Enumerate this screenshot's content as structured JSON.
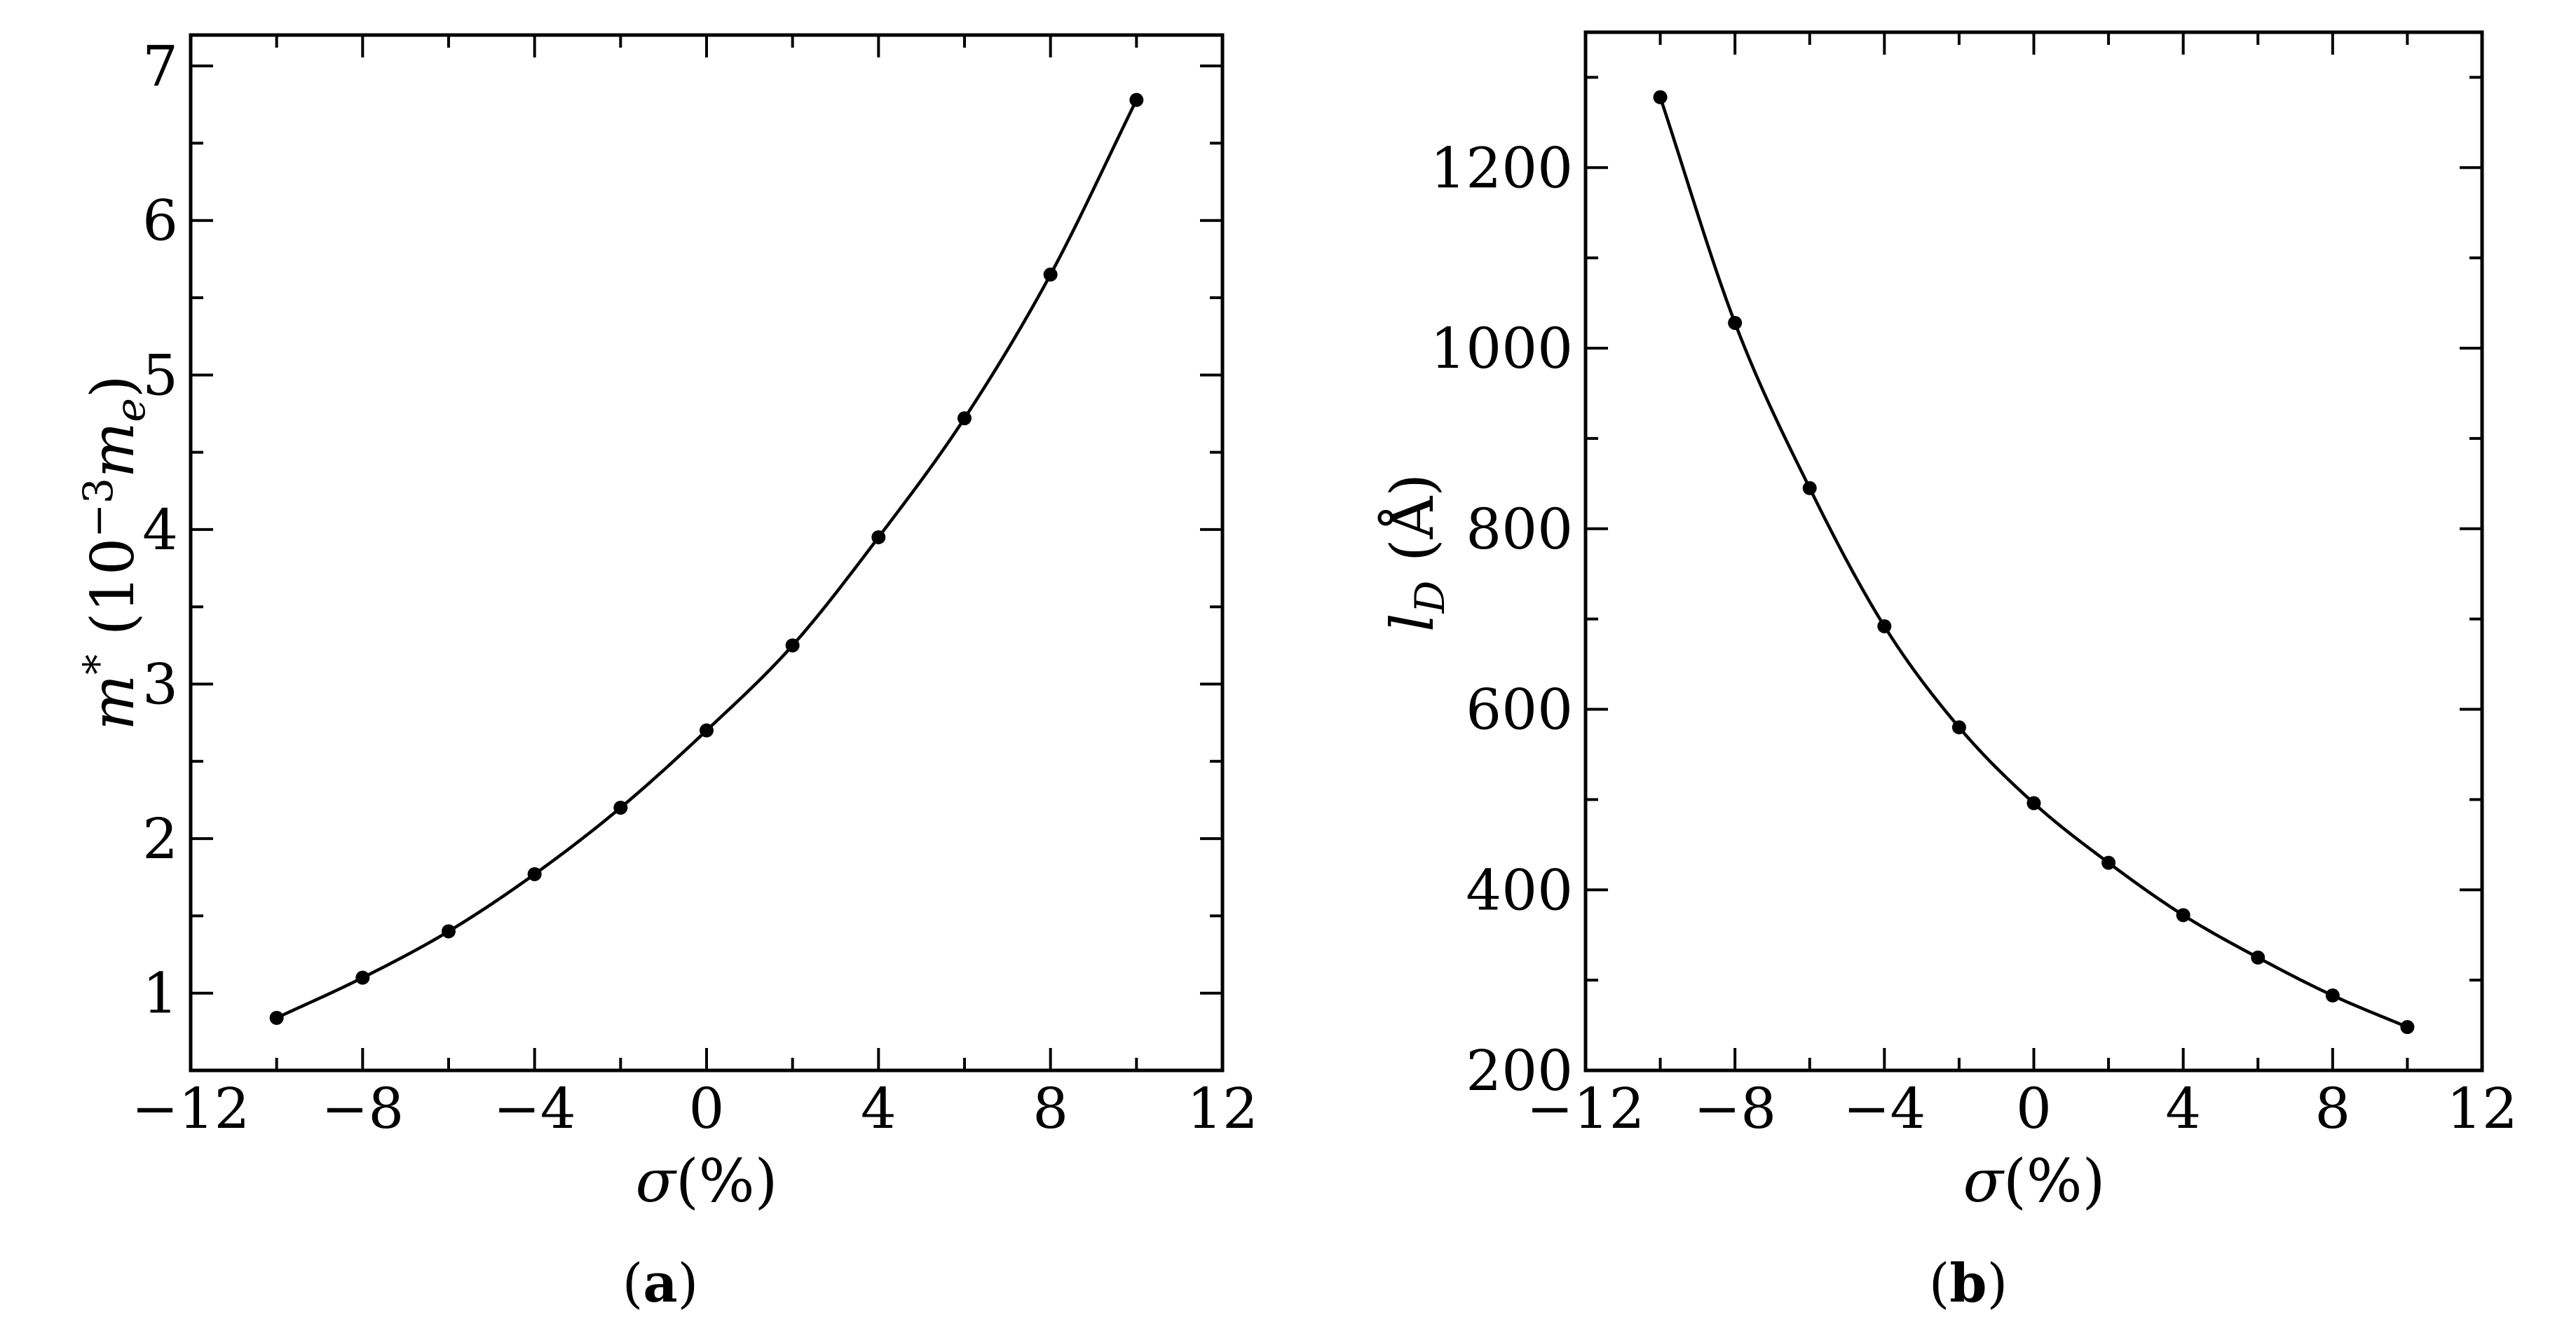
{
  "chart_data": [
    {
      "type": "line",
      "panel": "a",
      "caption": "(a)",
      "xlabel": "σ(%)",
      "ylabel": "m* (10⁻³ mₑ)",
      "xlim": [
        -12,
        12
      ],
      "ylim": [
        0.5,
        7.2
      ],
      "xticks": [
        -12,
        -8,
        -4,
        0,
        4,
        8,
        12
      ],
      "xtick_labels": [
        "−12",
        "−8",
        "−4",
        "0",
        "4",
        "8",
        "12"
      ],
      "yticks": [
        1,
        2,
        3,
        4,
        5,
        6,
        7
      ],
      "ytick_labels": [
        "1",
        "2",
        "3",
        "4",
        "5",
        "6",
        "7"
      ],
      "grid": false,
      "series": [
        {
          "x": [
            -10,
            -8,
            -6,
            -4,
            -2,
            0,
            2,
            4,
            6,
            8,
            10
          ],
          "y": [
            0.84,
            1.1,
            1.4,
            1.77,
            2.2,
            2.7,
            3.25,
            3.95,
            4.72,
            5.65,
            6.78
          ]
        }
      ]
    },
    {
      "type": "line",
      "panel": "b",
      "caption": "(b)",
      "xlabel": "σ(%)",
      "ylabel": "l_D (Å)",
      "xlim": [
        -12,
        12
      ],
      "ylim": [
        200,
        1350
      ],
      "xticks": [
        -12,
        -8,
        -4,
        0,
        4,
        8,
        12
      ],
      "xtick_labels": [
        "−12",
        "−8",
        "−4",
        "0",
        "4",
        "8",
        "12"
      ],
      "yticks": [
        200,
        400,
        600,
        800,
        1000,
        1200
      ],
      "ytick_labels": [
        "200",
        "400",
        "600",
        "800",
        "1000",
        "1200"
      ],
      "grid": false,
      "series": [
        {
          "x": [
            -10,
            -8,
            -6,
            -4,
            -2,
            0,
            2,
            4,
            6,
            8,
            10
          ],
          "y": [
            1278,
            1028,
            845,
            692,
            580,
            496,
            430,
            372,
            325,
            283,
            248
          ]
        }
      ]
    }
  ]
}
